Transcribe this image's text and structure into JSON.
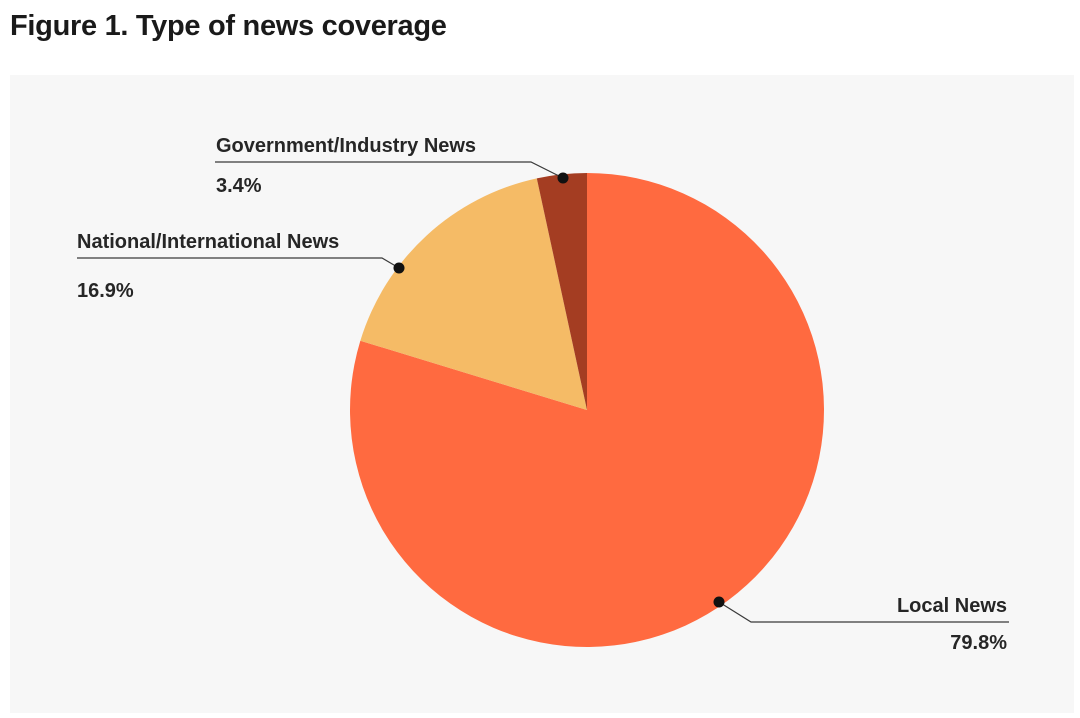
{
  "figure_title": "Figure 1. Type of news coverage",
  "chart_data": {
    "type": "pie",
    "slices": [
      {
        "label": "Local News",
        "value": 79.8,
        "value_label": "79.8%",
        "color": "#ff6a40"
      },
      {
        "label": "National/International News",
        "value": 16.9,
        "value_label": "16.9%",
        "color": "#f5bb66"
      },
      {
        "label": "Government/Industry News",
        "value": 3.4,
        "value_label": "3.4%",
        "color": "#a43d22"
      }
    ],
    "start": "top, clockwise",
    "background": "#f7f7f7"
  }
}
